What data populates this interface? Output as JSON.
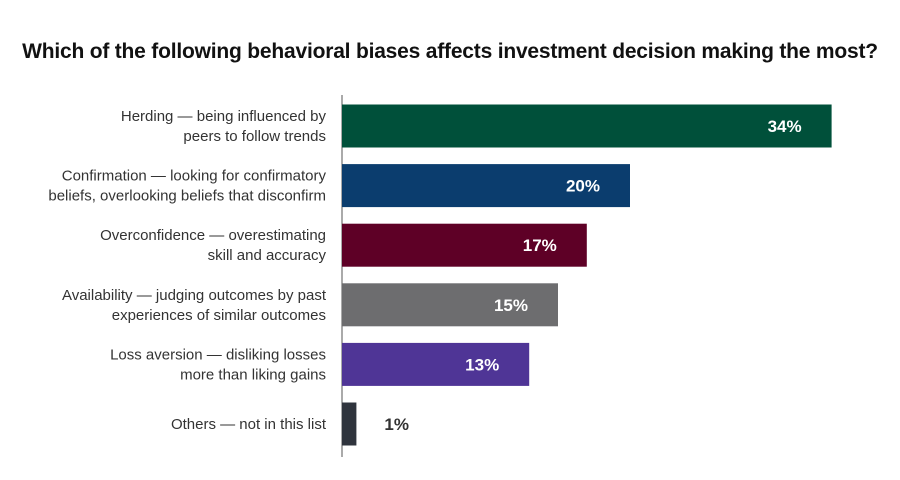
{
  "chart_data": {
    "type": "bar",
    "orientation": "horizontal",
    "title": "Which of the following behavioral biases affects investment decision making the most?",
    "xlabel": "",
    "ylabel": "",
    "xlim": [
      0,
      35
    ],
    "grid": false,
    "legend": "none",
    "value_suffix": "%",
    "categories": [
      [
        "Herding — being influenced by",
        "peers to follow trends"
      ],
      [
        "Confirmation — looking for confirmatory",
        "beliefs, overlooking beliefs that disconfirm"
      ],
      [
        "Overconfidence — overestimating",
        "skill and accuracy"
      ],
      [
        "Availability — judging outcomes by past",
        "experiences of similar outcomes"
      ],
      [
        "Loss aversion — disliking losses",
        "more than liking gains"
      ],
      [
        "Others — not in this list"
      ]
    ],
    "values": [
      34,
      20,
      17,
      15,
      13,
      1
    ],
    "colors": [
      "#00503a",
      "#0b3d6e",
      "#5e0026",
      "#6d6d6f",
      "#4f3596",
      "#2f343d"
    ]
  }
}
